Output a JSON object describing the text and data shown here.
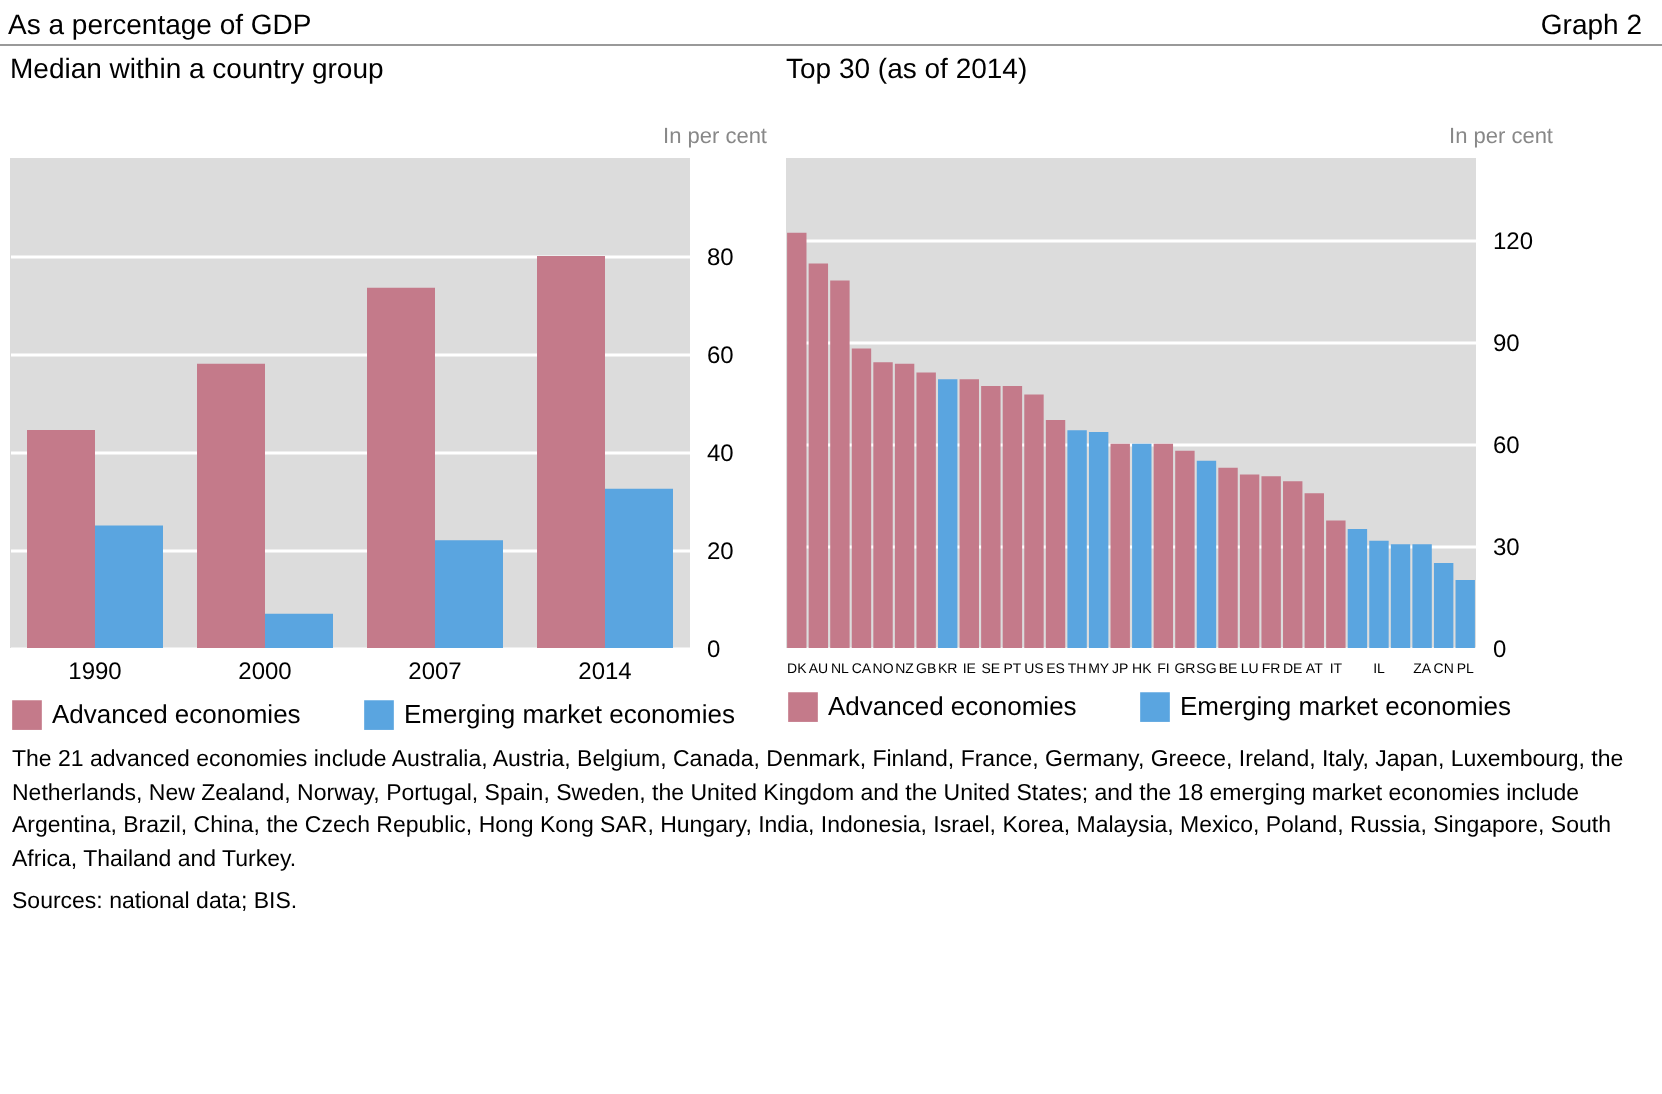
{
  "chart_data": [
    {
      "type": "bar",
      "title": "Median within a country group",
      "ylabel": "In per cent",
      "annotations": [
        "As a percentage of GDP",
        "Graph 2"
      ],
      "categories": [
        "1990",
        "2000",
        "2007",
        "2014"
      ],
      "series": [
        {
          "name": "Advanced economies",
          "color": "#c47a8a",
          "values": [
            44.5,
            58,
            73.5,
            80
          ]
        },
        {
          "name": "Emerging market economies",
          "color": "#5aa5e0",
          "values": [
            25,
            7,
            22,
            32.5
          ]
        }
      ],
      "ylim": [
        0,
        100
      ],
      "yticks": [
        0,
        20,
        40,
        60,
        80
      ],
      "grid": "y",
      "legend": "bottom"
    },
    {
      "type": "bar",
      "title": "Top 30 (as of 2014)",
      "ylabel": "In per cent",
      "stacked": true,
      "annotations": [
        "The 21 advanced economies include Australia, Austria, Belgium, Canada, Denmark, Finland, France, Germany, Greece, Ireland, Italy, Japan, Luxembourg, the Netherlands, New Zealand, Norway, Portugal, Spain, Sweden, the United Kingdom and the United States; and the 18 emerging market economies include Argentina, Brazil, China, the Czech Republic, Hong Kong SAR, Hungary, India, Indonesia, Israel, Korea, Malaysia, Mexico, Poland, Russia, Singapore, South Africa, Thailand and Turkey.",
        "Sources: national data; BIS."
      ],
      "categories": [
        "DK",
        "AU",
        "NL",
        "CA",
        "NO",
        "NZ",
        "GB",
        "KR",
        "IE",
        "SE",
        "PT",
        "US",
        "ES",
        "TH",
        "MY",
        "JP",
        "HK",
        "FI",
        "GR",
        "SG",
        "BE",
        "LU",
        "FR",
        "DE",
        "AT",
        "IT",
        null,
        "IL",
        null,
        "ZA",
        "CN",
        "PL"
      ],
      "series": [
        {
          "name": "Advanced economies",
          "color": "#c47a8a",
          "values": [
            122,
            113,
            108,
            88,
            84,
            83.5,
            81,
            null,
            79,
            77,
            77,
            74.5,
            67,
            null,
            null,
            60,
            null,
            60,
            58,
            null,
            53,
            51,
            50.5,
            49,
            45.5,
            37.5,
            null,
            null,
            null,
            null,
            null,
            null
          ]
        },
        {
          "name": "Emerging market economies",
          "color": "#5aa5e0",
          "values": [
            null,
            null,
            null,
            null,
            null,
            null,
            null,
            79,
            null,
            null,
            null,
            null,
            null,
            64,
            63.5,
            null,
            60,
            null,
            null,
            55,
            null,
            null,
            null,
            null,
            null,
            null,
            35,
            31.5,
            30.5,
            30.5,
            25,
            20
          ]
        }
      ],
      "ylim": [
        0,
        144
      ],
      "yticks": [
        0,
        30,
        60,
        90,
        120
      ],
      "grid": "y",
      "legend": "bottom"
    }
  ]
}
